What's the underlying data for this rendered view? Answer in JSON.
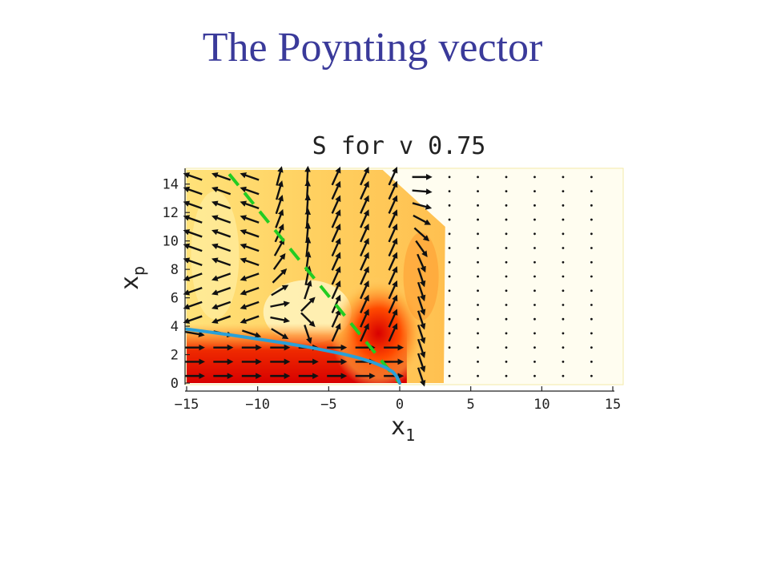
{
  "slide": {
    "title": "The Poynting vector"
  },
  "chart_data": {
    "type": "vector-field",
    "title": "S for v 0.75",
    "xlabel": "x",
    "xlabel_sub": "1",
    "ylabel": "x",
    "ylabel_sub": "p",
    "xlim": [
      -15,
      15
    ],
    "ylim": [
      0,
      15
    ],
    "xticks": [
      -15,
      -10,
      -5,
      0,
      5,
      10,
      15
    ],
    "yticks": [
      0,
      2,
      4,
      6,
      8,
      10,
      12,
      14
    ],
    "grid": false,
    "velocity": 0.75,
    "colormap": [
      "#d80000",
      "#ff5a00",
      "#ffb340",
      "#ffe680",
      "#fff6c8"
    ],
    "field_columns_x": [
      -14.5,
      -12.5,
      -10.5,
      -8.5,
      -6.5,
      -4.5,
      -2.5,
      -0.5,
      1.5,
      3.5,
      5.5,
      7.5,
      9.5,
      11.5,
      13.5
    ],
    "field_rows_y": [
      0.5,
      1.5,
      2.5,
      3.5,
      4.5,
      5.5,
      6.5,
      7.5,
      8.5,
      9.5,
      10.5,
      11.5,
      12.5,
      13.5,
      14.5
    ],
    "blue_curve": {
      "color": "#2aa0d8",
      "x": [
        -15,
        -12,
        -10,
        -8,
        -6,
        -4,
        -3,
        -2,
        -1,
        -0.5,
        -0.2,
        0
      ],
      "y": [
        3.8,
        3.4,
        3.1,
        2.8,
        2.45,
        2.05,
        1.8,
        1.5,
        1.1,
        0.8,
        0.45,
        0
      ]
    },
    "green_dashed_line": {
      "color": "#22cc22",
      "x": [
        -12,
        0
      ],
      "y": [
        14.7,
        0
      ]
    }
  }
}
